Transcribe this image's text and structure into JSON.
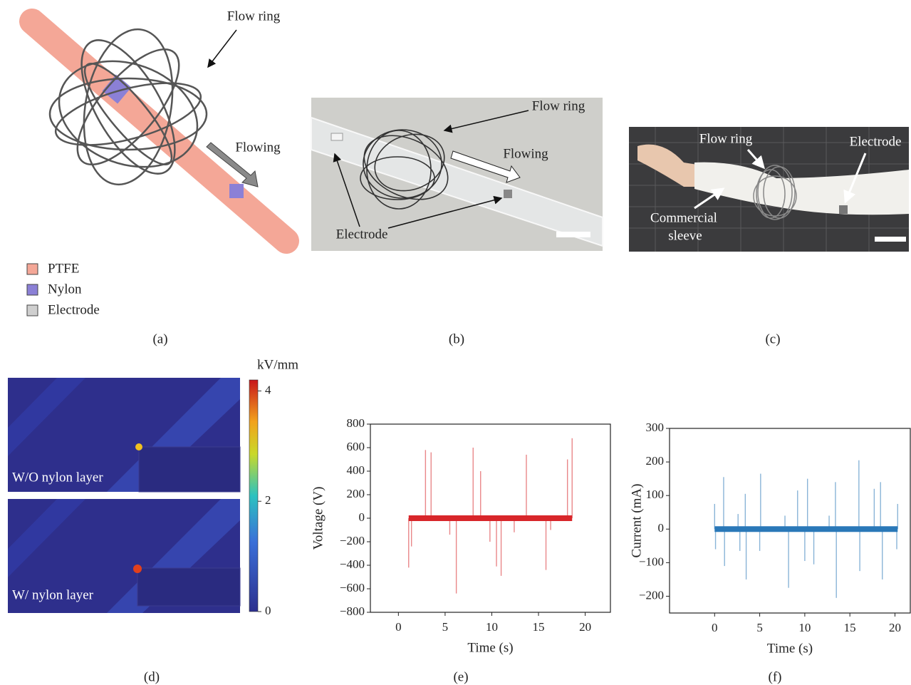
{
  "panels": {
    "a": {
      "label": "(a)",
      "annotations": [
        "Flow ring",
        "Flowing"
      ],
      "legend": [
        {
          "name": "PTFE",
          "color": "#f4a797"
        },
        {
          "name": "Nylon",
          "color": "#8b80d6"
        },
        {
          "name": "Electrode",
          "color": "#cfcfcf"
        }
      ]
    },
    "b": {
      "label": "(b)",
      "annotations": [
        "Flow ring",
        "Flowing",
        "Electrode"
      ]
    },
    "c": {
      "label": "(c)",
      "annotations": [
        "Flow ring",
        "Electrode",
        "Commercial",
        "sleeve"
      ]
    },
    "d": {
      "label": "(d)",
      "captions": [
        "W/O nylon layer",
        "W/ nylon layer"
      ],
      "colorbar": {
        "title": "kV/mm",
        "lim": [
          0,
          4.2
        ],
        "ticks": [
          0,
          2,
          4
        ]
      }
    },
    "e": {
      "label": "(e)"
    },
    "f": {
      "label": "(f)"
    }
  },
  "chart_data": [
    {
      "type": "spike",
      "xlabel": "Time (s)",
      "ylabel": "Voltage (V)",
      "xlim": [
        -3,
        22.7
      ],
      "xticks": [
        0,
        5,
        10,
        15,
        20
      ],
      "ylim": [
        -800,
        800
      ],
      "yticks": [
        {
          "value": -800,
          "label": "−800"
        },
        {
          "value": -600,
          "label": "−600"
        },
        {
          "value": -400,
          "label": "−400"
        },
        {
          "value": -200,
          "label": "−200"
        },
        0,
        200,
        400,
        600,
        800
      ],
      "series": [
        {
          "color": "#d8262a",
          "x": [
            1.1,
            1.4,
            2.9,
            3.5,
            5.5,
            6.2,
            8.0,
            8.8,
            9.8,
            10.5,
            11.0,
            12.4,
            13.7,
            15.8,
            16.3,
            18.1,
            18.6
          ],
          "values": [
            -420,
            -240,
            580,
            560,
            -140,
            -640,
            600,
            400,
            -200,
            -410,
            -490,
            -120,
            540,
            -440,
            -100,
            500,
            680
          ]
        }
      ]
    },
    {
      "type": "spike",
      "xlabel": "Time (s)",
      "ylabel": "Current (mA)",
      "xlim": [
        -5,
        21.7
      ],
      "xticks": [
        0,
        5,
        10,
        15,
        20
      ],
      "ylim": [
        -250,
        300
      ],
      "yticks": [
        {
          "value": -200,
          "label": "−200"
        },
        {
          "value": -100,
          "label": "−100"
        },
        0,
        100,
        200,
        300
      ],
      "series": [
        {
          "color": "#2a78b8",
          "x": [
            0.0,
            0.1,
            1.0,
            1.1,
            2.6,
            2.8,
            3.4,
            3.5,
            5.0,
            5.1,
            7.8,
            8.2,
            9.2,
            10.0,
            10.3,
            11.0,
            12.7,
            13.4,
            13.5,
            16.0,
            16.1,
            17.7,
            18.4,
            18.6,
            20.2,
            20.3
          ],
          "values": [
            75,
            -60,
            155,
            -110,
            45,
            -65,
            105,
            -150,
            -65,
            165,
            40,
            -175,
            115,
            -95,
            150,
            -105,
            40,
            140,
            -205,
            205,
            -125,
            120,
            140,
            -150,
            -60,
            75
          ]
        }
      ]
    }
  ]
}
